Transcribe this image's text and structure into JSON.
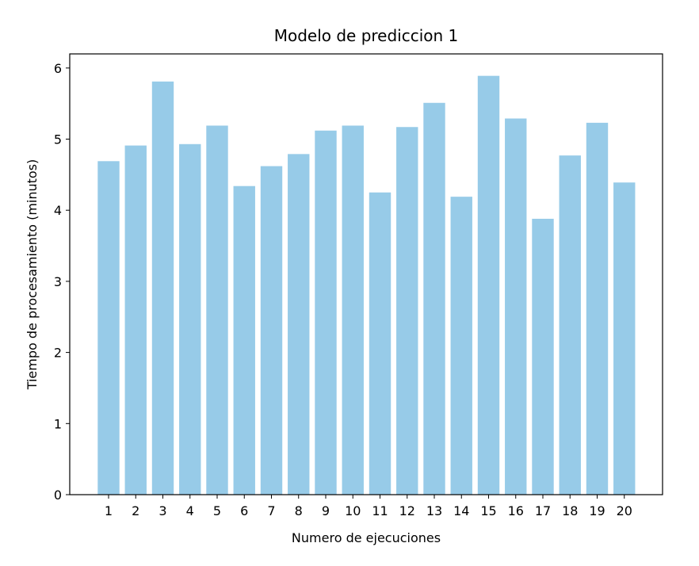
{
  "chart_data": {
    "type": "bar",
    "title": "Modelo de prediccion 1",
    "xlabel": "Numero de ejecuciones",
    "ylabel": "Tiempo de procesamiento (minutos)",
    "categories": [
      "1",
      "2",
      "3",
      "4",
      "5",
      "6",
      "7",
      "8",
      "9",
      "10",
      "11",
      "12",
      "13",
      "14",
      "15",
      "16",
      "17",
      "18",
      "19",
      "20"
    ],
    "values": [
      4.69,
      4.91,
      5.81,
      4.93,
      5.19,
      4.34,
      4.62,
      4.79,
      5.12,
      5.19,
      4.25,
      5.17,
      5.51,
      4.19,
      5.89,
      5.29,
      3.88,
      4.77,
      5.23,
      4.39
    ],
    "ylim": [
      0,
      6.2
    ],
    "yticks": [
      0,
      1,
      2,
      3,
      4,
      5,
      6
    ],
    "grid": false,
    "legend": "none",
    "bar_color": "#97cbe8"
  }
}
